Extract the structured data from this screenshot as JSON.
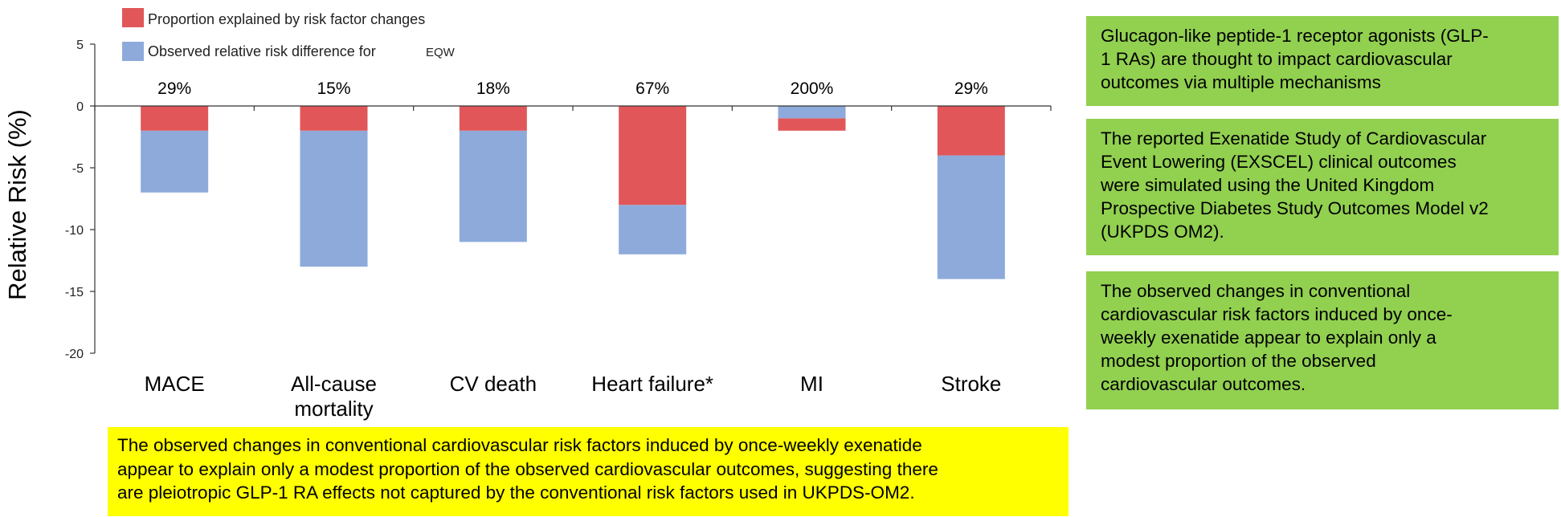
{
  "chart_data": {
    "type": "bar",
    "stacked": true,
    "ylabel": "Relative Risk (%)",
    "ylim": [
      -20,
      5
    ],
    "yticks": [
      5,
      0,
      -5,
      -10,
      -15,
      -20
    ],
    "grid": false,
    "legend_position": "top",
    "categories": [
      "MACE",
      "All-cause mortality",
      "CV death",
      "Heart failure*",
      "MI",
      "Stroke"
    ],
    "category_lines": [
      [
        "MACE"
      ],
      [
        "All-cause",
        "mortality"
      ],
      [
        "CV death"
      ],
      [
        "Heart failure*"
      ],
      [
        "MI"
      ],
      [
        "Stroke"
      ]
    ],
    "percent_labels": [
      "29%",
      "15%",
      "18%",
      "67%",
      "200%",
      "29%"
    ],
    "series": [
      {
        "name": "Proportion explained by risk factor changes",
        "color": "#e15759",
        "values": [
          -2,
          -2,
          -2,
          -8,
          -2,
          -4
        ]
      },
      {
        "name": "Observed relative risk difference for",
        "name_suffix": "EQW",
        "color": "#8eaadb",
        "values": [
          -7,
          -13,
          -11,
          -12,
          -1,
          -14
        ]
      }
    ]
  },
  "side_panels": [
    {
      "lines": [
        "Glucagon-like peptide-1 receptor agonists (GLP-",
        "1 RAs) are thought to impact cardiovascular",
        "outcomes via multiple mechanisms"
      ]
    },
    {
      "lines": [
        "The reported Exenatide Study of Cardiovascular",
        "Event Lowering (EXSCEL) clinical outcomes",
        "were simulated using the United Kingdom",
        "Prospective Diabetes Study Outcomes Model v2",
        "(UKPDS OM2)."
      ]
    },
    {
      "lines": [
        "The observed changes in conventional",
        "cardiovascular risk factors induced by once-",
        "weekly exenatide appear to explain only a",
        "modest proportion of the observed",
        "cardiovascular outcomes."
      ]
    }
  ],
  "conclusion": {
    "lines": [
      "The observed changes in conventional cardiovascular risk factors induced by once-weekly exenatide",
      "appear to explain only a modest proportion of the observed cardiovascular outcomes, suggesting there",
      "are pleiotropic GLP-1 RA effects not captured by the conventional risk factors used in UKPDS-OM2."
    ]
  },
  "colors": {
    "panel_green": "#92d050",
    "highlight_yellow": "#ffff00"
  }
}
